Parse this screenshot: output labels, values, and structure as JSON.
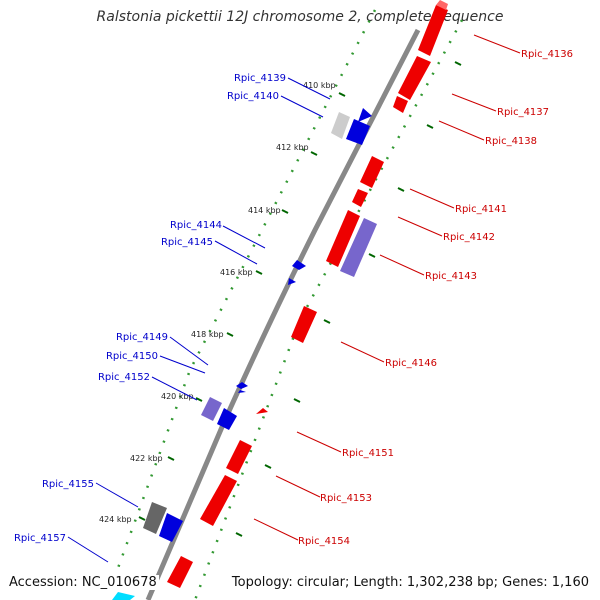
{
  "title": "Ralstonia pickettii 12J chromosome 2, complete sequence",
  "accession": "Accession: NC_010678",
  "summary": "Topology: circular; Length: 1,302,238 bp; Genes: 1,160",
  "colors": {
    "forward_gene": "#ff0000",
    "reverse_gene": "#0000ff",
    "pseudo_forward": "#7766cc",
    "pseudo_reverse": "#7766cc",
    "other_gray": "#666666",
    "other_light": "#cccccc",
    "backbone": "#888888",
    "forward_tick": "#339933",
    "label_forward": "#cc0000",
    "label_reverse": "#0000cc"
  },
  "kbp_labels": [
    "410 kbp",
    "412 kbp",
    "414 kbp",
    "416 kbp",
    "418 kbp",
    "420 kbp",
    "422 kbp",
    "424 kbp"
  ],
  "reverse_labels": [
    "Rpic_4139",
    "Rpic_4140",
    "Rpic_4144",
    "Rpic_4145",
    "Rpic_4149",
    "Rpic_4150",
    "Rpic_4152",
    "Rpic_4155",
    "Rpic_4157"
  ],
  "forward_labels": [
    "Rpic_4136",
    "Rpic_4137",
    "Rpic_4138",
    "Rpic_4141",
    "Rpic_4142",
    "Rpic_4143",
    "Rpic_4146",
    "Rpic_4151",
    "Rpic_4153",
    "Rpic_4154"
  ]
}
